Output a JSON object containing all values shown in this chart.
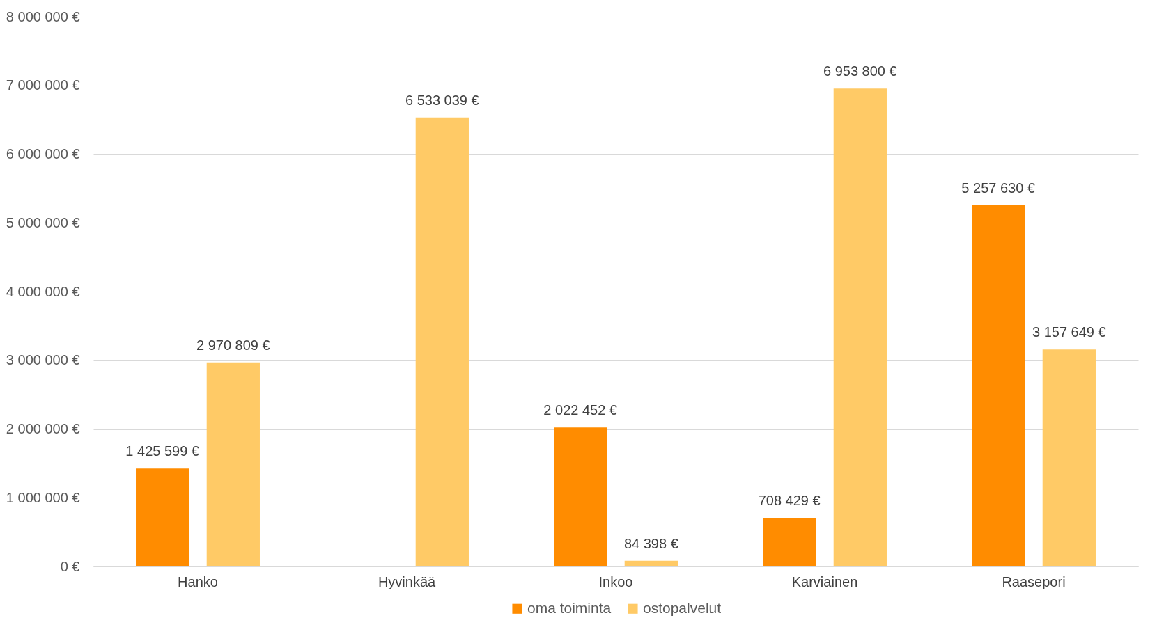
{
  "chart_data": {
    "type": "bar",
    "categories": [
      "Hanko",
      "Hyvinkää",
      "Inkoo",
      "Karviainen",
      "Raasepori"
    ],
    "series": [
      {
        "name": "oma toiminta",
        "color": "#ff8c00",
        "values": [
          1425599,
          null,
          2022452,
          708429,
          5257630
        ],
        "value_labels": [
          "1 425 599 €",
          null,
          "2 022 452 €",
          "708 429 €",
          "5 257 630 €"
        ]
      },
      {
        "name": "ostopalvelut",
        "color": "#ffca66",
        "values": [
          2970809,
          6533039,
          84398,
          6953800,
          3157649
        ],
        "value_labels": [
          "2 970 809 €",
          "6 533 039 €",
          "84 398 €",
          "6 953 800 €",
          "3 157 649 €"
        ]
      }
    ],
    "ylim": [
      0,
      8000000
    ],
    "yticks": [
      {
        "value": 0,
        "label": "0 €"
      },
      {
        "value": 1000000,
        "label": "1 000 000 €"
      },
      {
        "value": 2000000,
        "label": "2 000 000 €"
      },
      {
        "value": 3000000,
        "label": "3 000 000 €"
      },
      {
        "value": 4000000,
        "label": "4 000 000 €"
      },
      {
        "value": 5000000,
        "label": "5 000 000 €"
      },
      {
        "value": 6000000,
        "label": "6 000 000 €"
      },
      {
        "value": 7000000,
        "label": "7 000 000 €"
      },
      {
        "value": 8000000,
        "label": "8 000 000 €"
      }
    ],
    "grid": "y",
    "legend": "bottom"
  }
}
